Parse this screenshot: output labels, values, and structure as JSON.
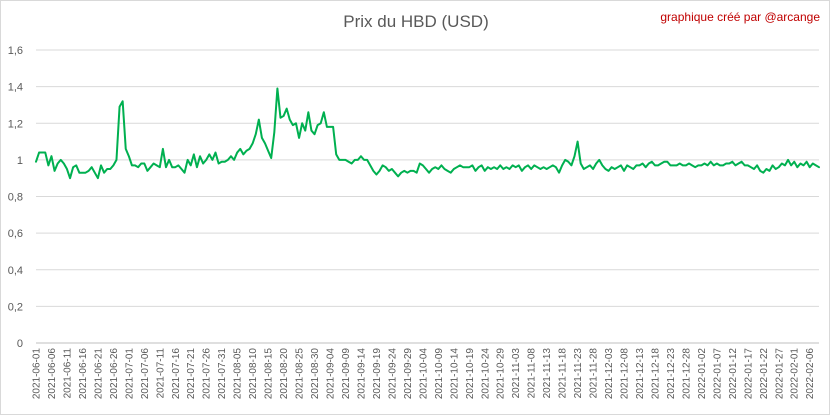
{
  "chart_data": {
    "type": "line",
    "title": "Prix du HBD (USD)",
    "credit": "graphique créé par @arcange",
    "ylim": [
      0,
      1.6
    ],
    "y_ticks": [
      "0",
      "0,2",
      "0,4",
      "0,6",
      "0,8",
      "1",
      "1,2",
      "1,4",
      "1,6"
    ],
    "x_tick_labels": [
      "2021-06-01",
      "2021-06-06",
      "2021-06-11",
      "2021-06-16",
      "2021-06-21",
      "2021-06-26",
      "2021-07-01",
      "2021-07-06",
      "2021-07-11",
      "2021-07-16",
      "2021-07-21",
      "2021-07-26",
      "2021-07-31",
      "2021-08-05",
      "2021-08-10",
      "2021-08-15",
      "2021-08-20",
      "2021-08-25",
      "2021-08-30",
      "2021-09-04",
      "2021-09-09",
      "2021-09-14",
      "2021-09-19",
      "2021-09-24",
      "2021-09-29",
      "2021-10-04",
      "2021-10-09",
      "2021-10-14",
      "2021-10-19",
      "2021-10-24",
      "2021-10-29",
      "2021-11-03",
      "2021-11-08",
      "2021-11-13",
      "2021-11-18",
      "2021-11-23",
      "2021-11-28",
      "2021-12-03",
      "2021-12-08",
      "2021-12-13",
      "2021-12-18",
      "2021-12-23",
      "2021-12-28",
      "2022-01-02",
      "2022-01-07",
      "2022-01-12",
      "2022-01-17",
      "2022-01-22",
      "2022-01-27",
      "2022-02-01",
      "2022-02-06"
    ],
    "grid": true,
    "legend": "none",
    "line_color": "#00b050",
    "series": [
      {
        "values": [
          0.99,
          1.04,
          1.04,
          1.04,
          0.97,
          1.02,
          0.94,
          0.98,
          1.0,
          0.98,
          0.95,
          0.9,
          0.96,
          0.97,
          0.93,
          0.93,
          0.93,
          0.94,
          0.96,
          0.93,
          0.9,
          0.97,
          0.93,
          0.95,
          0.95,
          0.97,
          1.0,
          1.29,
          1.32,
          1.06,
          1.02,
          0.97,
          0.97,
          0.96,
          0.98,
          0.98,
          0.94,
          0.96,
          0.98,
          0.97,
          0.96,
          1.06,
          0.96,
          1.0,
          0.96,
          0.96,
          0.97,
          0.95,
          0.93,
          1.0,
          0.97,
          1.03,
          0.96,
          1.02,
          0.98,
          1.0,
          1.03,
          1.0,
          1.04,
          0.98,
          0.99,
          0.99,
          1.0,
          1.02,
          1.0,
          1.04,
          1.06,
          1.03,
          1.05,
          1.06,
          1.09,
          1.14,
          1.22,
          1.12,
          1.09,
          1.05,
          1.01,
          1.15,
          1.39,
          1.23,
          1.24,
          1.28,
          1.22,
          1.19,
          1.2,
          1.12,
          1.2,
          1.16,
          1.26,
          1.16,
          1.14,
          1.19,
          1.2,
          1.26,
          1.18,
          1.18,
          1.18,
          1.03,
          1.0,
          1.0,
          1.0,
          0.99,
          0.98,
          1.0,
          1.0,
          1.02,
          1.0,
          1.0,
          0.97,
          0.94,
          0.92,
          0.94,
          0.97,
          0.96,
          0.94,
          0.95,
          0.93,
          0.91,
          0.93,
          0.94,
          0.93,
          0.94,
          0.94,
          0.93,
          0.98,
          0.97,
          0.95,
          0.93,
          0.95,
          0.96,
          0.95,
          0.97,
          0.95,
          0.94,
          0.93,
          0.95,
          0.96,
          0.97,
          0.96,
          0.96,
          0.96,
          0.97,
          0.94,
          0.96,
          0.97,
          0.94,
          0.96,
          0.95,
          0.96,
          0.95,
          0.97,
          0.95,
          0.96,
          0.95,
          0.97,
          0.96,
          0.97,
          0.94,
          0.96,
          0.97,
          0.95,
          0.97,
          0.96,
          0.95,
          0.96,
          0.95,
          0.96,
          0.97,
          0.96,
          0.93,
          0.97,
          1.0,
          0.99,
          0.97,
          1.02,
          1.1,
          0.98,
          0.95,
          0.96,
          0.97,
          0.95,
          0.98,
          1.0,
          0.97,
          0.95,
          0.94,
          0.96,
          0.95,
          0.96,
          0.97,
          0.94,
          0.97,
          0.96,
          0.95,
          0.97,
          0.97,
          0.98,
          0.96,
          0.98,
          0.99,
          0.97,
          0.97,
          0.98,
          0.99,
          0.99,
          0.97,
          0.97,
          0.97,
          0.98,
          0.97,
          0.97,
          0.98,
          0.97,
          0.96,
          0.97,
          0.97,
          0.98,
          0.97,
          0.99,
          0.97,
          0.98,
          0.97,
          0.97,
          0.98,
          0.98,
          0.99,
          0.97,
          0.98,
          0.99,
          0.97,
          0.97,
          0.96,
          0.95,
          0.97,
          0.94,
          0.93,
          0.95,
          0.94,
          0.97,
          0.95,
          0.96,
          0.98,
          0.97,
          1.0,
          0.97,
          0.99,
          0.96,
          0.98,
          0.97,
          0.99,
          0.96,
          0.98,
          0.97,
          0.96
        ]
      }
    ]
  }
}
